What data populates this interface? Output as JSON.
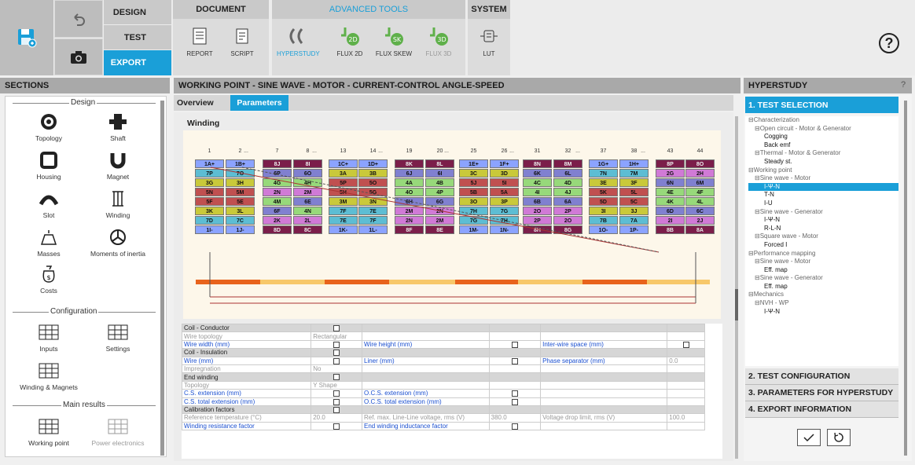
{
  "toolbar": {
    "modes": [
      "DESIGN",
      "TEST",
      "EXPORT"
    ],
    "active_mode": "EXPORT",
    "groups": [
      {
        "label": "DOCUMENT"
      },
      {
        "label": "ADVANCED TOOLS"
      },
      {
        "label": "SYSTEM"
      }
    ],
    "tools": [
      "REPORT",
      "SCRIPT",
      "HYPERSTUDY",
      "FLUX 2D",
      "FLUX SKEW",
      "FLUX 3D",
      "LUT"
    ],
    "help": "?"
  },
  "sections": {
    "title": "SECTIONS",
    "design_label": "Design",
    "config_label": "Configuration",
    "results_label": "Main results",
    "design": [
      "Topology",
      "Shaft",
      "Housing",
      "Magnet",
      "Slot",
      "Winding",
      "Masses",
      "Moments of inertia",
      "Costs"
    ],
    "config": [
      "Inputs",
      "Settings",
      "Winding & Magnets"
    ],
    "results": [
      "Working point",
      "Power electronics"
    ]
  },
  "main": {
    "title": "WORKING POINT - SINE WAVE - MOTOR - CURRENT-CONTROL ANGLE-SPEED",
    "tabs": [
      "Overview",
      "Parameters"
    ],
    "active_tab": "Parameters",
    "section": "Winding",
    "winding": {
      "col_numbers": [
        "1",
        "2",
        "7",
        "8",
        "13",
        "14",
        "19",
        "20",
        "25",
        "26",
        "31",
        "32",
        "37",
        "38",
        "43",
        "44"
      ],
      "ellipses": [
        "...",
        "...",
        "...",
        "...",
        "...",
        "...",
        "..."
      ],
      "columns": [
        [
          "1A+",
          "7P",
          "3G",
          "5N",
          "5F",
          "3K",
          "7D",
          "1I-"
        ],
        [
          "1B+",
          "7O",
          "3H",
          "5M",
          "5E",
          "3L",
          "7C",
          "1J-"
        ],
        [
          "8J",
          "6P",
          "4G",
          "2N",
          "4M",
          "6F",
          "2K",
          "8D"
        ],
        [
          "8I",
          "6O",
          "4H",
          "2M",
          "6E",
          "4N",
          "2L",
          "8C"
        ],
        [
          "1C+",
          "3A",
          "5P",
          "5H",
          "3M",
          "7F",
          "7E",
          "1K-"
        ],
        [
          "1D+",
          "3B",
          "5O",
          "5G",
          "3N",
          "7E",
          "7F",
          "1L-"
        ],
        [
          "8K",
          "6J",
          "4A",
          "4O",
          "6H",
          "2M",
          "2N",
          "8F"
        ],
        [
          "8L",
          "6I",
          "4B",
          "4P",
          "6G",
          "2N",
          "2M",
          "8E"
        ],
        [
          "1E+",
          "3C",
          "5J",
          "5B",
          "3O",
          "7H",
          "7G",
          "1M-"
        ],
        [
          "1F+",
          "3D",
          "5I",
          "5A",
          "3P",
          "7G",
          "7H",
          "1N-"
        ],
        [
          "8N",
          "6K",
          "4C",
          "4I",
          "6B",
          "2O",
          "2P",
          "8H"
        ],
        [
          "8M",
          "6L",
          "4D",
          "4J",
          "6A",
          "2P",
          "2O",
          "8G"
        ],
        [
          "1G+",
          "7N",
          "3E",
          "5K",
          "5D",
          "3I",
          "7B",
          "1O-"
        ],
        [
          "1H+",
          "7M",
          "3F",
          "5L",
          "5C",
          "3J",
          "7A",
          "1P-"
        ],
        [
          "8P",
          "2G",
          "6N",
          "4E",
          "4K",
          "6D",
          "2I",
          "8B"
        ],
        [
          "8O",
          "2H",
          "6M",
          "4F",
          "4L",
          "6C",
          "2J",
          "8A"
        ]
      ],
      "colors": {
        "1": "#8ba3ff",
        "2": "#d07ad6",
        "3": "#c9c93a",
        "4": "#97d97a",
        "5": "#c05050",
        "6": "#8080d0",
        "7": "#5dbdd3",
        "8": "#7b1e4a",
        "ph_light": "#f4e9c9"
      }
    },
    "table": [
      {
        "k": "header",
        "c": [
          "Coil - Conductor",
          "cb",
          "",
          "",
          "",
          "",
          "",
          ""
        ]
      },
      {
        "k": "grey",
        "c": [
          "Wire topology",
          "Rectangular",
          "",
          "",
          "",
          "",
          "",
          ""
        ]
      },
      {
        "k": "blue",
        "c": [
          "Wire width (mm)",
          "cb",
          "Wire height (mm)",
          "cb",
          "Inter-wire space (mm)",
          "cb",
          "",
          ""
        ]
      },
      {
        "k": "header",
        "c": [
          "Coil - Insulation",
          "cb",
          "",
          "",
          "",
          "",
          "",
          ""
        ]
      },
      {
        "k": "blue",
        "c": [
          "Wire (mm)",
          "cb",
          "Liner (mm)",
          "cb",
          "Phase separator (mm)",
          "0.0",
          "",
          ""
        ]
      },
      {
        "k": "grey",
        "c": [
          "Impregnation",
          "No",
          "",
          "",
          "",
          "",
          "",
          ""
        ]
      },
      {
        "k": "header",
        "c": [
          "End winding",
          "cb",
          "",
          "",
          "",
          "",
          "",
          ""
        ]
      },
      {
        "k": "grey",
        "c": [
          "Topology",
          "Y Shape",
          "",
          "",
          "",
          "",
          "",
          ""
        ]
      },
      {
        "k": "blue",
        "c": [
          "C.S. extension (mm)",
          "cb",
          "O.C.S. extension (mm)",
          "cb",
          "",
          "",
          "",
          ""
        ]
      },
      {
        "k": "blue",
        "c": [
          "C.S. total extension (mm)",
          "cb",
          "O.C.S. total extension (mm)",
          "cb",
          "",
          "",
          "",
          ""
        ]
      },
      {
        "k": "header",
        "c": [
          "Calibration factors",
          "cb",
          "",
          "",
          "",
          "",
          "",
          ""
        ]
      },
      {
        "k": "grey",
        "c": [
          "Reference temperature (°C)",
          "20.0",
          "Ref. max. Line-Line voltage, rms (V)",
          "380.0",
          "Voltage drop limit, rms (V)",
          "100.0",
          "",
          ""
        ]
      },
      {
        "k": "blue",
        "c": [
          "Winding resistance factor",
          "cb",
          "End winding inductance factor",
          "cb",
          "",
          "",
          "",
          ""
        ]
      }
    ]
  },
  "hyperstudy": {
    "title": "HYPERSTUDY",
    "help": "?",
    "sections": [
      "1. TEST SELECTION",
      "2. TEST CONFIGURATION",
      "3. PARAMETERS FOR HYPERSTUDY",
      "4. EXPORT INFORMATION"
    ],
    "tree": [
      {
        "t": "⊟Characterization",
        "d": 0,
        "leaf": false
      },
      {
        "t": "⊟Open circuit - Motor & Generator",
        "d": 1,
        "leaf": false
      },
      {
        "t": "Cogging",
        "d": 2,
        "leaf": true
      },
      {
        "t": "Back emf",
        "d": 2,
        "leaf": true
      },
      {
        "t": "⊟Thermal - Motor & Generator",
        "d": 1,
        "leaf": false
      },
      {
        "t": "Steady st.",
        "d": 2,
        "leaf": true
      },
      {
        "t": "⊟Working point",
        "d": 0,
        "leaf": false
      },
      {
        "t": "⊟Sine wave - Motor",
        "d": 1,
        "leaf": false
      },
      {
        "t": "I-Ψ-N",
        "d": 2,
        "leaf": true,
        "sel": true
      },
      {
        "t": "T-N",
        "d": 2,
        "leaf": true
      },
      {
        "t": "I-U",
        "d": 2,
        "leaf": true
      },
      {
        "t": "⊟Sine wave - Generator",
        "d": 1,
        "leaf": false
      },
      {
        "t": "I-Ψ-N",
        "d": 2,
        "leaf": true
      },
      {
        "t": "R-L-N",
        "d": 2,
        "leaf": true
      },
      {
        "t": "⊟Square wave - Motor",
        "d": 1,
        "leaf": false
      },
      {
        "t": "Forced I",
        "d": 2,
        "leaf": true
      },
      {
        "t": "⊟Performance mapping",
        "d": 0,
        "leaf": false
      },
      {
        "t": "⊟Sine wave - Motor",
        "d": 1,
        "leaf": false
      },
      {
        "t": "Eff. map",
        "d": 2,
        "leaf": true
      },
      {
        "t": "⊟Sine wave - Generator",
        "d": 1,
        "leaf": false
      },
      {
        "t": "Eff. map",
        "d": 2,
        "leaf": true
      },
      {
        "t": "⊟Mechanics",
        "d": 0,
        "leaf": false
      },
      {
        "t": "⊟NVH - WP",
        "d": 1,
        "leaf": false
      },
      {
        "t": "I-Ψ-N",
        "d": 2,
        "leaf": true
      }
    ]
  }
}
